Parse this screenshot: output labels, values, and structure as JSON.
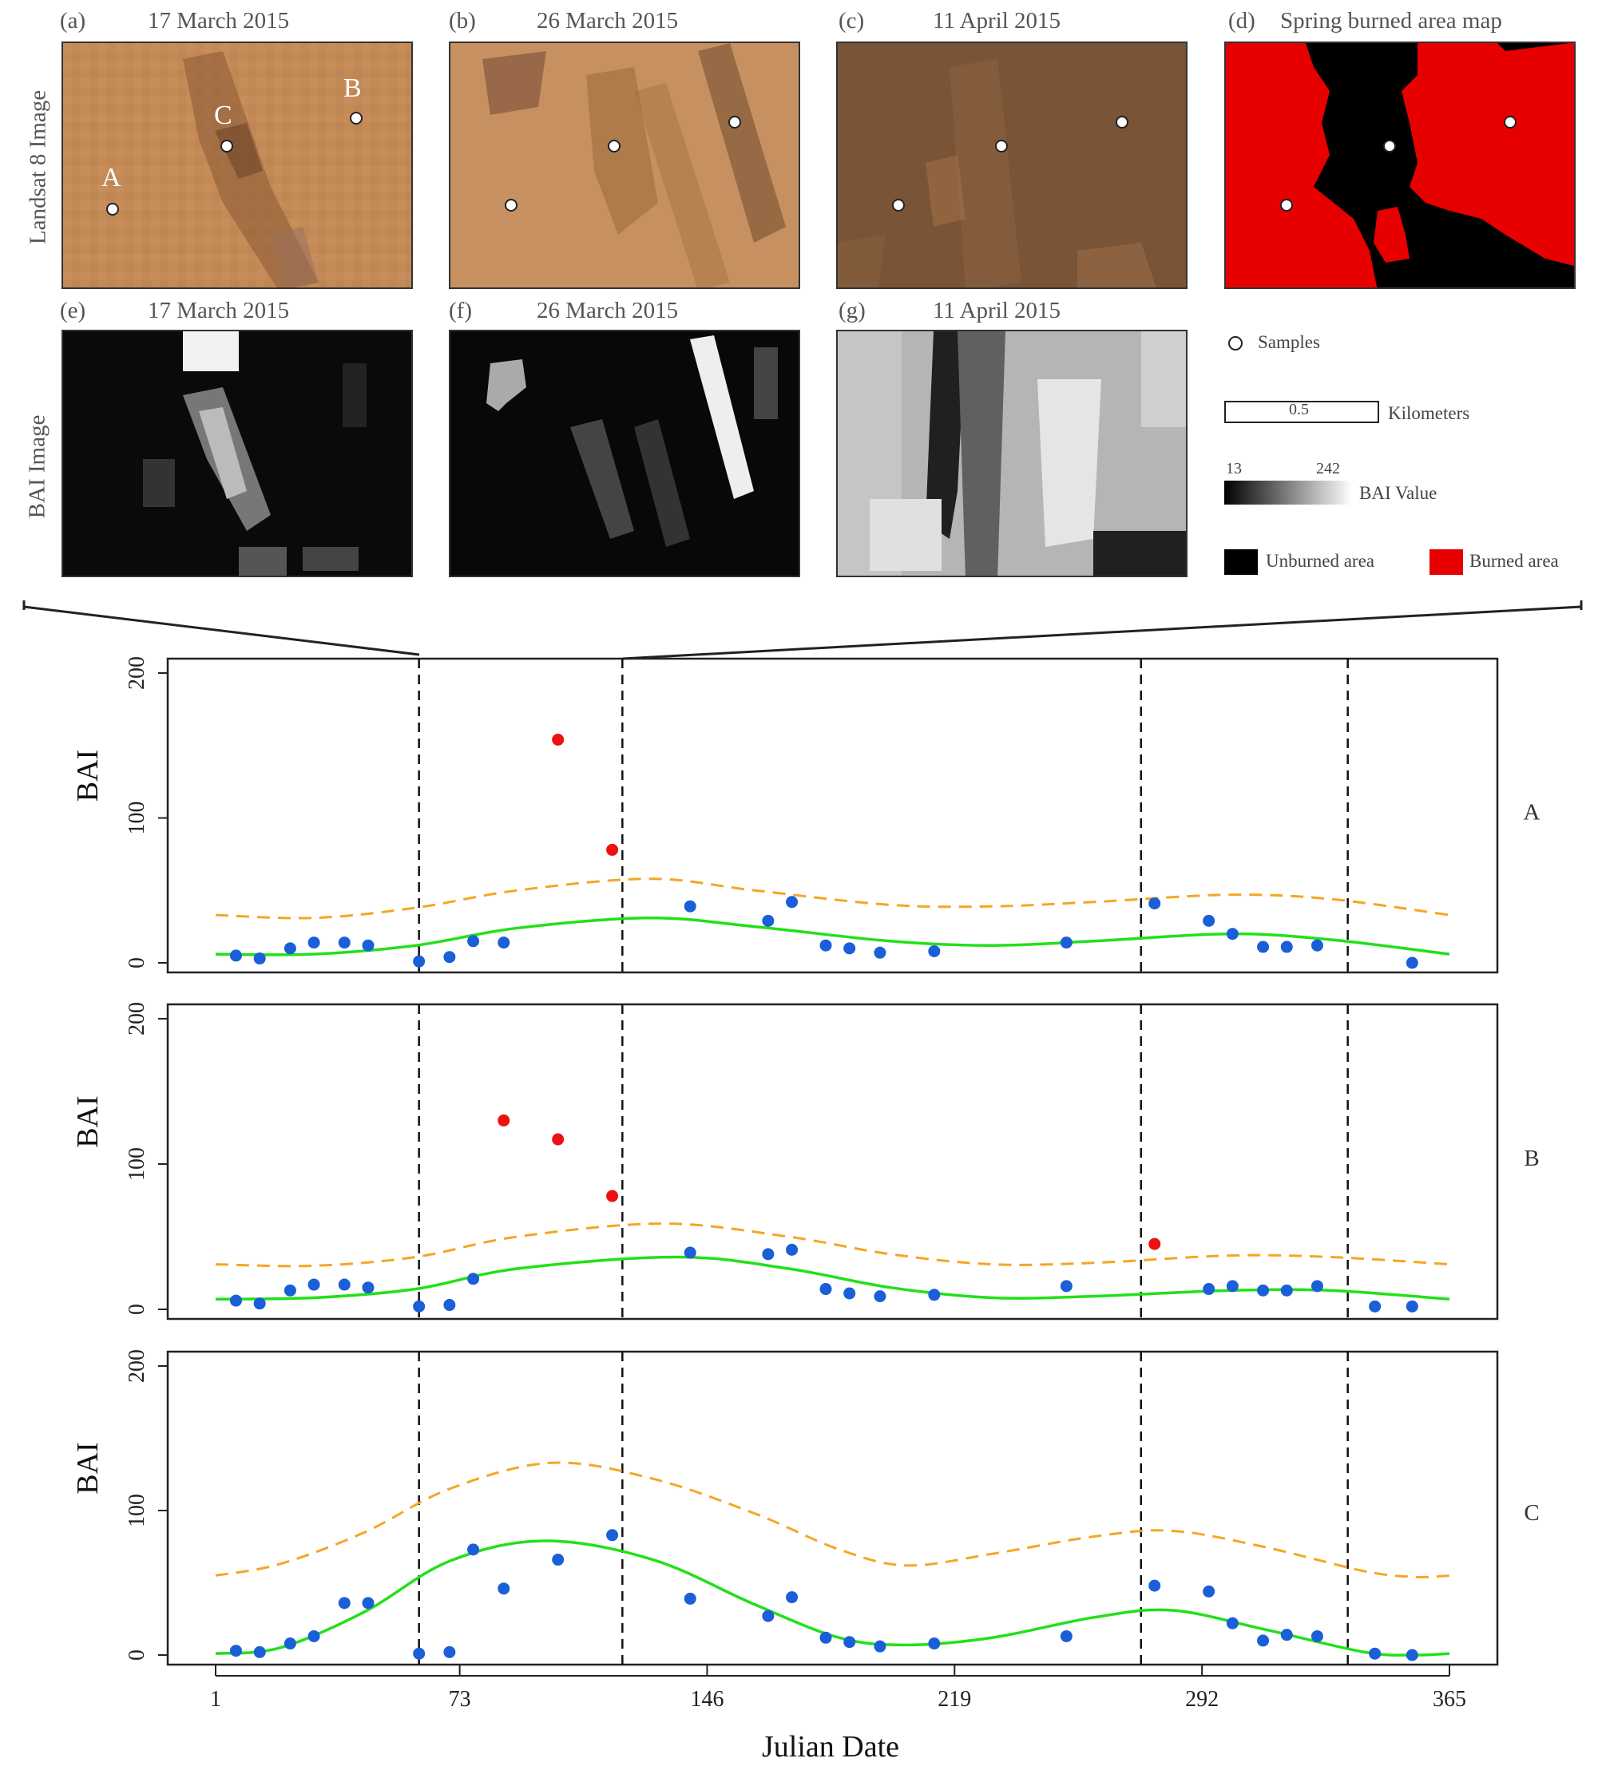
{
  "panels": [
    {
      "letter": "(a)",
      "date": "17 March 2015"
    },
    {
      "letter": "(b)",
      "date": "26 March 2015"
    },
    {
      "letter": "(c)",
      "date": "11 April 2015"
    },
    {
      "letter": "(d)",
      "date": "Spring burned area map"
    },
    {
      "letter": "(e)",
      "date": "17 March 2015"
    },
    {
      "letter": "(f)",
      "date": "26 March 2015"
    },
    {
      "letter": "(g)",
      "date": "11 April 2015"
    }
  ],
  "row_labels": {
    "landsat": "Landsat 8 Image",
    "bai": "BAI Image"
  },
  "sample_labels": {
    "a": "A",
    "b": "B",
    "c": "C"
  },
  "legend": {
    "samples": "Samples",
    "scale_value": "0.5",
    "scale_unit": "Kilometers",
    "bai_min": "13",
    "bai_max": "242",
    "bai_label": "BAI Value",
    "unburned": "Unburned area",
    "burned": "Burned area"
  },
  "colors": {
    "burned": "#e60000",
    "unburned": "#000000",
    "normal": "#1a5fd8",
    "anomaly": "#ee1111",
    "fit": "#22e01a",
    "threshold": "#f5a623"
  },
  "chart_data": {
    "type": "scatter",
    "xlabel": "Julian Date",
    "ylabel": "BAI",
    "xlim": [
      1,
      365
    ],
    "ylim": [
      0,
      200
    ],
    "xticks": [
      1,
      73,
      146,
      219,
      292,
      365
    ],
    "yticks": [
      0,
      100,
      200
    ],
    "vlines": [
      61,
      121,
      274,
      335
    ],
    "subplots": [
      {
        "name": "A",
        "points": [
          [
            7,
            5
          ],
          [
            14,
            3
          ],
          [
            23,
            10
          ],
          [
            30,
            14
          ],
          [
            39,
            14
          ],
          [
            46,
            12
          ],
          [
            61,
            1
          ],
          [
            70,
            4
          ],
          [
            77,
            15
          ],
          [
            86,
            14
          ],
          [
            102,
            154
          ],
          [
            118,
            78
          ],
          [
            141,
            39
          ],
          [
            164,
            29
          ],
          [
            171,
            42
          ],
          [
            181,
            12
          ],
          [
            188,
            10
          ],
          [
            197,
            7
          ],
          [
            213,
            8
          ],
          [
            252,
            14
          ],
          [
            278,
            41
          ],
          [
            294,
            29
          ],
          [
            301,
            20
          ],
          [
            310,
            11
          ],
          [
            317,
            11
          ],
          [
            326,
            12
          ],
          [
            354,
            0
          ]
        ],
        "anomaly": [
          [
            102,
            154
          ],
          [
            118,
            78
          ]
        ],
        "fit": [
          [
            1,
            6
          ],
          [
            30,
            6
          ],
          [
            60,
            12
          ],
          [
            90,
            24
          ],
          [
            129,
            31
          ],
          [
            160,
            25
          ],
          [
            200,
            15
          ],
          [
            230,
            12
          ],
          [
            260,
            15
          ],
          [
            300,
            20
          ],
          [
            330,
            16
          ],
          [
            365,
            6
          ]
        ],
        "threshold": [
          [
            1,
            33
          ],
          [
            30,
            31
          ],
          [
            60,
            38
          ],
          [
            90,
            50
          ],
          [
            129,
            58
          ],
          [
            160,
            50
          ],
          [
            200,
            40
          ],
          [
            230,
            39
          ],
          [
            260,
            42
          ],
          [
            300,
            47
          ],
          [
            330,
            44
          ],
          [
            365,
            33
          ]
        ]
      },
      {
        "name": "B",
        "points": [
          [
            7,
            6
          ],
          [
            14,
            4
          ],
          [
            23,
            13
          ],
          [
            30,
            17
          ],
          [
            39,
            17
          ],
          [
            46,
            15
          ],
          [
            61,
            2
          ],
          [
            70,
            3
          ],
          [
            77,
            21
          ],
          [
            86,
            130
          ],
          [
            102,
            117
          ],
          [
            118,
            78
          ],
          [
            141,
            39
          ],
          [
            164,
            38
          ],
          [
            171,
            41
          ],
          [
            181,
            14
          ],
          [
            188,
            11
          ],
          [
            197,
            9
          ],
          [
            213,
            10
          ],
          [
            252,
            16
          ],
          [
            278,
            45
          ],
          [
            294,
            14
          ],
          [
            301,
            16
          ],
          [
            310,
            13
          ],
          [
            317,
            13
          ],
          [
            326,
            16
          ],
          [
            343,
            2
          ],
          [
            354,
            2
          ]
        ],
        "anomaly": [
          [
            86,
            130
          ],
          [
            102,
            117
          ],
          [
            118,
            78
          ],
          [
            278,
            45
          ]
        ],
        "fit": [
          [
            1,
            7
          ],
          [
            30,
            8
          ],
          [
            60,
            14
          ],
          [
            90,
            28
          ],
          [
            137,
            36
          ],
          [
            170,
            28
          ],
          [
            200,
            15
          ],
          [
            230,
            8
          ],
          [
            260,
            9
          ],
          [
            300,
            13
          ],
          [
            330,
            13
          ],
          [
            365,
            7
          ]
        ],
        "threshold": [
          [
            1,
            31
          ],
          [
            30,
            30
          ],
          [
            60,
            36
          ],
          [
            90,
            50
          ],
          [
            133,
            59
          ],
          [
            170,
            50
          ],
          [
            200,
            38
          ],
          [
            230,
            31
          ],
          [
            260,
            32
          ],
          [
            300,
            37
          ],
          [
            330,
            36
          ],
          [
            365,
            31
          ]
        ]
      },
      {
        "name": "C",
        "points": [
          [
            7,
            3
          ],
          [
            14,
            2
          ],
          [
            23,
            8
          ],
          [
            30,
            13
          ],
          [
            39,
            36
          ],
          [
            46,
            36
          ],
          [
            61,
            1
          ],
          [
            70,
            2
          ],
          [
            77,
            73
          ],
          [
            86,
            46
          ],
          [
            102,
            66
          ],
          [
            118,
            83
          ],
          [
            141,
            39
          ],
          [
            164,
            27
          ],
          [
            171,
            40
          ],
          [
            181,
            12
          ],
          [
            188,
            9
          ],
          [
            197,
            6
          ],
          [
            213,
            8
          ],
          [
            252,
            13
          ],
          [
            278,
            48
          ],
          [
            294,
            44
          ],
          [
            301,
            22
          ],
          [
            310,
            10
          ],
          [
            317,
            14
          ],
          [
            326,
            13
          ],
          [
            343,
            1
          ],
          [
            354,
            0
          ]
        ],
        "anomaly": [],
        "fit": [
          [
            1,
            1
          ],
          [
            20,
            5
          ],
          [
            45,
            30
          ],
          [
            70,
            65
          ],
          [
            98,
            79
          ],
          [
            130,
            66
          ],
          [
            160,
            35
          ],
          [
            185,
            12
          ],
          [
            205,
            7
          ],
          [
            230,
            12
          ],
          [
            260,
            26
          ],
          [
            283,
            31
          ],
          [
            310,
            18
          ],
          [
            340,
            2
          ],
          [
            355,
            0
          ],
          [
            365,
            1
          ]
        ],
        "threshold": [
          [
            1,
            55
          ],
          [
            20,
            63
          ],
          [
            45,
            85
          ],
          [
            70,
            115
          ],
          [
            100,
            133
          ],
          [
            130,
            122
          ],
          [
            160,
            98
          ],
          [
            185,
            73
          ],
          [
            205,
            62
          ],
          [
            230,
            70
          ],
          [
            260,
            82
          ],
          [
            283,
            86
          ],
          [
            310,
            75
          ],
          [
            340,
            58
          ],
          [
            355,
            54
          ],
          [
            365,
            55
          ]
        ]
      }
    ]
  }
}
